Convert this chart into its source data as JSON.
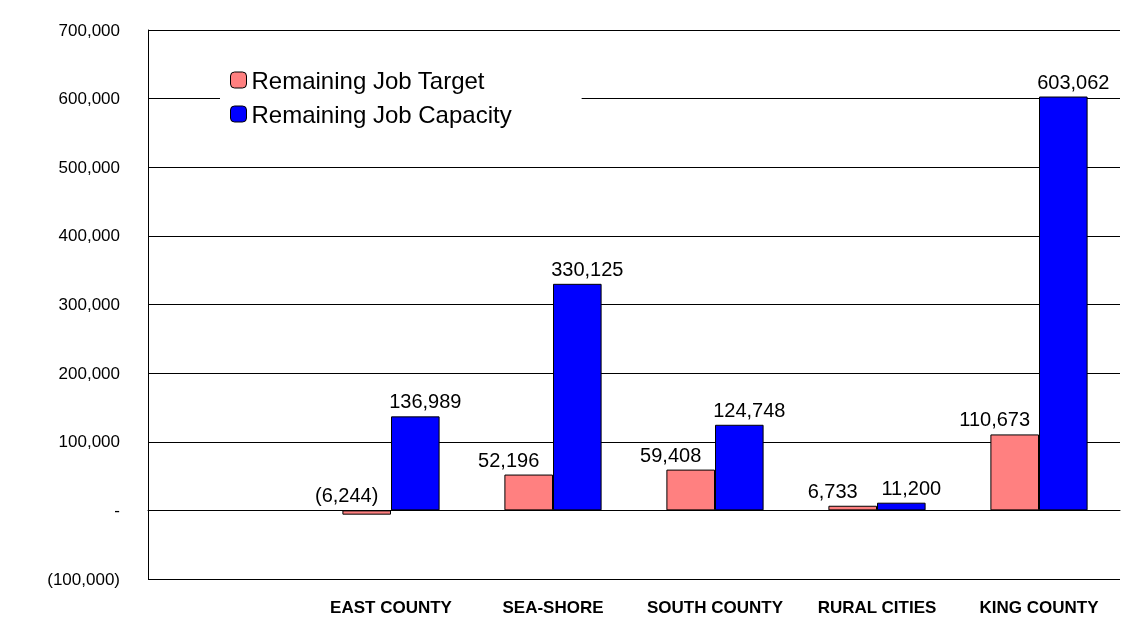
{
  "chart_data": {
    "type": "bar",
    "categories": [
      null,
      "EAST COUNTY",
      "SEA-SHORE",
      "SOUTH COUNTY",
      "RURAL CITIES",
      "KING COUNTY"
    ],
    "series": [
      {
        "name": "Remaining Job Target",
        "color": "#ff8080",
        "values": [
          null,
          -6244,
          52196,
          59408,
          6733,
          110673
        ],
        "value_labels": [
          null,
          "(6,244)",
          "52,196",
          "59,408",
          "6,733",
          "110,673"
        ]
      },
      {
        "name": "Remaining Job Capacity",
        "color": "#0000ff",
        "values": [
          null,
          136989,
          330125,
          124748,
          11200,
          603062
        ],
        "value_labels": [
          null,
          "136,989",
          "330,125",
          "124,748",
          "11,200",
          "603,062"
        ]
      }
    ],
    "ylim": [
      -100000,
      700000
    ],
    "yticks": [
      {
        "value": -100000,
        "label": "(100,000)"
      },
      {
        "value": 0,
        "label": "-"
      },
      {
        "value": 100000,
        "label": "100,000"
      },
      {
        "value": 200000,
        "label": "200,000"
      },
      {
        "value": 300000,
        "label": "300,000"
      },
      {
        "value": 400000,
        "label": "400,000"
      },
      {
        "value": 500000,
        "label": "500,000"
      },
      {
        "value": 600000,
        "label": "600,000"
      },
      {
        "value": 700000,
        "label": "700,000"
      }
    ],
    "grid": "y",
    "legend": "top left"
  }
}
